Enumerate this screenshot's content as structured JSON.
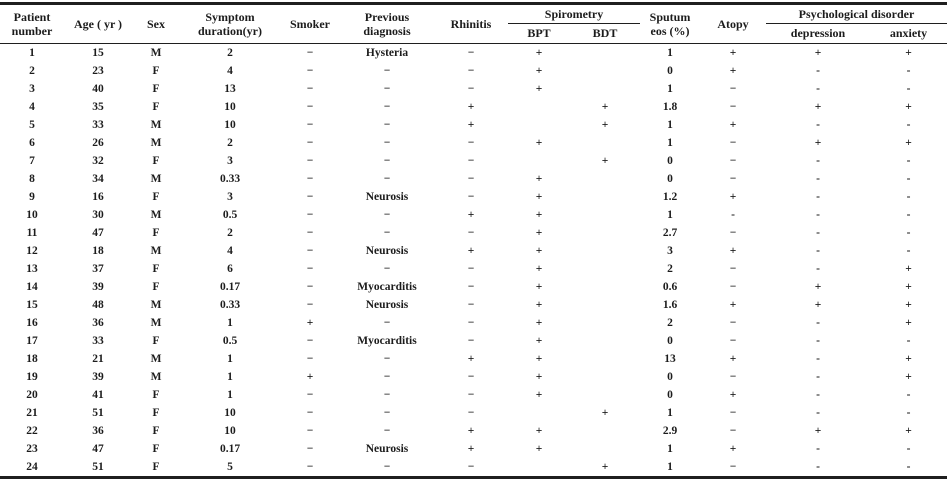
{
  "chart_data": {
    "type": "table",
    "header": {
      "patient": "Patient\nnumber",
      "age": "Age ( yr )",
      "sex": "Sex",
      "duration": "Symptom\nduration(yr)",
      "smoker": "Smoker",
      "previous": "Previous\ndiagnosis",
      "rhinitis": "Rhinitis",
      "spirometry": "Spirometry",
      "bpt": "BPT",
      "bdt": "BDT",
      "sputum": "Sputum\neos (%)",
      "atopy": "Atopy",
      "psych": "Psychological disorder",
      "depression": "depression",
      "anxiety": "anxiety"
    },
    "column_keys": [
      "patient_number",
      "age_yr",
      "sex",
      "symptom_duration_yr",
      "smoker",
      "previous_diagnosis",
      "rhinitis",
      "spirometry_bpt",
      "spirometry_bdt",
      "sputum_eos_pct",
      "atopy",
      "depression",
      "anxiety"
    ],
    "rows": [
      [
        "1",
        "15",
        "M",
        "2",
        "−",
        "Hysteria",
        "−",
        "+",
        "",
        "1",
        "+",
        "+",
        "+"
      ],
      [
        "2",
        "23",
        "F",
        "4",
        "−",
        "−",
        "−",
        "+",
        "",
        "0",
        "+",
        "-",
        "-"
      ],
      [
        "3",
        "40",
        "F",
        "13",
        "−",
        "−",
        "−",
        "+",
        "",
        "1",
        "−",
        "-",
        "-"
      ],
      [
        "4",
        "35",
        "F",
        "10",
        "−",
        "−",
        "+",
        "",
        "+",
        "1.8",
        "−",
        "+",
        "+"
      ],
      [
        "5",
        "33",
        "M",
        "10",
        "−",
        "−",
        "+",
        "",
        "+",
        "1",
        "+",
        "-",
        "-"
      ],
      [
        "6",
        "26",
        "M",
        "2",
        "−",
        "−",
        "−",
        "+",
        "",
        "1",
        "−",
        "+",
        "+"
      ],
      [
        "7",
        "32",
        "F",
        "3",
        "−",
        "−",
        "−",
        "",
        "+",
        "0",
        "−",
        "-",
        "-"
      ],
      [
        "8",
        "34",
        "M",
        "0.33",
        "−",
        "−",
        "−",
        "+",
        "",
        "0",
        "−",
        "-",
        "-"
      ],
      [
        "9",
        "16",
        "F",
        "3",
        "−",
        "Neurosis",
        "−",
        "+",
        "",
        "1.2",
        "+",
        "-",
        "-"
      ],
      [
        "10",
        "30",
        "M",
        "0.5",
        "−",
        "−",
        "+",
        "+",
        "",
        "1",
        "-",
        "-",
        "-"
      ],
      [
        "11",
        "47",
        "F",
        "2",
        "−",
        "−",
        "−",
        "+",
        "",
        "2.7",
        "−",
        "-",
        "-"
      ],
      [
        "12",
        "18",
        "M",
        "4",
        "−",
        "Neurosis",
        "+",
        "+",
        "",
        "3",
        "+",
        "-",
        "-"
      ],
      [
        "13",
        "37",
        "F",
        "6",
        "−",
        "−",
        "−",
        "+",
        "",
        "2",
        "−",
        "-",
        "+"
      ],
      [
        "14",
        "39",
        "F",
        "0.17",
        "−",
        "Myocarditis",
        "−",
        "+",
        "",
        "0.6",
        "−",
        "+",
        "+"
      ],
      [
        "15",
        "48",
        "M",
        "0.33",
        "−",
        "Neurosis",
        "−",
        "+",
        "",
        "1.6",
        "+",
        "+",
        "+"
      ],
      [
        "16",
        "36",
        "M",
        "1",
        "+",
        "−",
        "−",
        "+",
        "",
        "2",
        "−",
        "-",
        "+"
      ],
      [
        "17",
        "33",
        "F",
        "0.5",
        "−",
        "Myocarditis",
        "−",
        "+",
        "",
        "0",
        "−",
        "-",
        "-"
      ],
      [
        "18",
        "21",
        "M",
        "1",
        "−",
        "−",
        "+",
        "+",
        "",
        "13",
        "+",
        "-",
        "+"
      ],
      [
        "19",
        "39",
        "M",
        "1",
        "+",
        "−",
        "−",
        "+",
        "",
        "0",
        "−",
        "-",
        "+"
      ],
      [
        "20",
        "41",
        "F",
        "1",
        "−",
        "−",
        "−",
        "+",
        "",
        "0",
        "+",
        "-",
        "-"
      ],
      [
        "21",
        "51",
        "F",
        "10",
        "−",
        "−",
        "−",
        "",
        "+",
        "1",
        "−",
        "-",
        "-"
      ],
      [
        "22",
        "36",
        "F",
        "10",
        "−",
        "−",
        "+",
        "+",
        "",
        "2.9",
        "−",
        "+",
        "+"
      ],
      [
        "23",
        "47",
        "F",
        "0.17",
        "−",
        "Neurosis",
        "+",
        "+",
        "",
        "1",
        "+",
        "-",
        "-"
      ],
      [
        "24",
        "51",
        "F",
        "5",
        "−",
        "−",
        "−",
        "",
        "+",
        "1",
        "−",
        "-",
        "-"
      ]
    ]
  }
}
